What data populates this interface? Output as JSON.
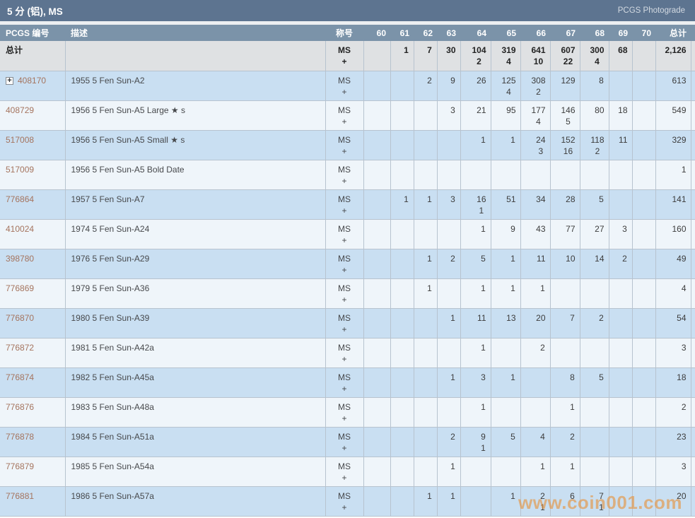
{
  "header": {
    "title": "5 分 (铝), MS",
    "right_label": "PCGS Photograde"
  },
  "table": {
    "columns": [
      "PCGS 编号",
      "描述",
      "称号",
      "60",
      "61",
      "62",
      "63",
      "64",
      "65",
      "66",
      "67",
      "68",
      "69",
      "70",
      "总计"
    ],
    "designation": {
      "line1": "MS",
      "line2": "+"
    },
    "totals_row": {
      "label": "总计",
      "grades": [
        [
          "",
          ""
        ],
        [
          "1",
          ""
        ],
        [
          "7",
          ""
        ],
        [
          "30",
          ""
        ],
        [
          "104",
          "2"
        ],
        [
          "319",
          "4"
        ],
        [
          "641",
          "10"
        ],
        [
          "607",
          "22"
        ],
        [
          "300",
          "4"
        ],
        [
          "68",
          ""
        ],
        [
          "",
          ""
        ]
      ],
      "total": "2,126"
    },
    "rows": [
      {
        "pcgs_no": "408170",
        "expandable": true,
        "description": "1955 5 Fen Sun-A2",
        "grades": [
          [
            "",
            ""
          ],
          [
            "",
            ""
          ],
          [
            "2",
            ""
          ],
          [
            "9",
            ""
          ],
          [
            "26",
            ""
          ],
          [
            "125",
            "4"
          ],
          [
            "308",
            "2"
          ],
          [
            "129",
            ""
          ],
          [
            "8",
            ""
          ],
          [
            "",
            ""
          ],
          [
            "",
            ""
          ]
        ],
        "total": "613"
      },
      {
        "pcgs_no": "408729",
        "expandable": false,
        "description": "1956 5 Fen Sun-A5 Large ★ s",
        "grades": [
          [
            "",
            ""
          ],
          [
            "",
            ""
          ],
          [
            "",
            ""
          ],
          [
            "3",
            ""
          ],
          [
            "21",
            ""
          ],
          [
            "95",
            ""
          ],
          [
            "177",
            "4"
          ],
          [
            "146",
            "5"
          ],
          [
            "80",
            ""
          ],
          [
            "18",
            ""
          ],
          [
            "",
            ""
          ]
        ],
        "total": "549"
      },
      {
        "pcgs_no": "517008",
        "expandable": false,
        "description": "1956 5 Fen Sun-A5 Small ★ s",
        "grades": [
          [
            "",
            ""
          ],
          [
            "",
            ""
          ],
          [
            "",
            ""
          ],
          [
            "",
            ""
          ],
          [
            "1",
            ""
          ],
          [
            "1",
            ""
          ],
          [
            "24",
            "3"
          ],
          [
            "152",
            "16"
          ],
          [
            "118",
            "2"
          ],
          [
            "11",
            ""
          ],
          [
            "",
            ""
          ]
        ],
        "total": "329"
      },
      {
        "pcgs_no": "517009",
        "expandable": false,
        "description": "1956 5 Fen Sun-A5 Bold Date",
        "grades": [
          [
            "",
            ""
          ],
          [
            "",
            ""
          ],
          [
            "",
            ""
          ],
          [
            "",
            ""
          ],
          [
            "",
            ""
          ],
          [
            "",
            ""
          ],
          [
            "",
            ""
          ],
          [
            "",
            ""
          ],
          [
            "",
            ""
          ],
          [
            "",
            ""
          ],
          [
            "",
            ""
          ]
        ],
        "total": "1"
      },
      {
        "pcgs_no": "776864",
        "expandable": false,
        "description": "1957 5 Fen Sun-A7",
        "grades": [
          [
            "",
            ""
          ],
          [
            "1",
            ""
          ],
          [
            "1",
            ""
          ],
          [
            "3",
            ""
          ],
          [
            "16",
            "1"
          ],
          [
            "51",
            ""
          ],
          [
            "34",
            ""
          ],
          [
            "28",
            ""
          ],
          [
            "5",
            ""
          ],
          [
            "",
            ""
          ],
          [
            "",
            ""
          ]
        ],
        "total": "141"
      },
      {
        "pcgs_no": "410024",
        "expandable": false,
        "description": "1974 5 Fen Sun-A24",
        "grades": [
          [
            "",
            ""
          ],
          [
            "",
            ""
          ],
          [
            "",
            ""
          ],
          [
            "",
            ""
          ],
          [
            "1",
            ""
          ],
          [
            "9",
            ""
          ],
          [
            "43",
            ""
          ],
          [
            "77",
            ""
          ],
          [
            "27",
            ""
          ],
          [
            "3",
            ""
          ],
          [
            "",
            ""
          ]
        ],
        "total": "160"
      },
      {
        "pcgs_no": "398780",
        "expandable": false,
        "description": "1976 5 Fen Sun-A29",
        "grades": [
          [
            "",
            ""
          ],
          [
            "",
            ""
          ],
          [
            "1",
            ""
          ],
          [
            "2",
            ""
          ],
          [
            "5",
            ""
          ],
          [
            "1",
            ""
          ],
          [
            "11",
            ""
          ],
          [
            "10",
            ""
          ],
          [
            "14",
            ""
          ],
          [
            "2",
            ""
          ],
          [
            "",
            ""
          ]
        ],
        "total": "49"
      },
      {
        "pcgs_no": "776869",
        "expandable": false,
        "description": "1979 5 Fen Sun-A36",
        "grades": [
          [
            "",
            ""
          ],
          [
            "",
            ""
          ],
          [
            "1",
            ""
          ],
          [
            "",
            ""
          ],
          [
            "1",
            ""
          ],
          [
            "1",
            ""
          ],
          [
            "1",
            ""
          ],
          [
            "",
            ""
          ],
          [
            "",
            ""
          ],
          [
            "",
            ""
          ],
          [
            "",
            ""
          ]
        ],
        "total": "4"
      },
      {
        "pcgs_no": "776870",
        "expandable": false,
        "description": "1980 5 Fen Sun-A39",
        "grades": [
          [
            "",
            ""
          ],
          [
            "",
            ""
          ],
          [
            "",
            ""
          ],
          [
            "1",
            ""
          ],
          [
            "11",
            ""
          ],
          [
            "13",
            ""
          ],
          [
            "20",
            ""
          ],
          [
            "7",
            ""
          ],
          [
            "2",
            ""
          ],
          [
            "",
            ""
          ],
          [
            "",
            ""
          ]
        ],
        "total": "54"
      },
      {
        "pcgs_no": "776872",
        "expandable": false,
        "description": "1981 5 Fen Sun-A42a",
        "grades": [
          [
            "",
            ""
          ],
          [
            "",
            ""
          ],
          [
            "",
            ""
          ],
          [
            "",
            ""
          ],
          [
            "1",
            ""
          ],
          [
            "",
            ""
          ],
          [
            "2",
            ""
          ],
          [
            "",
            ""
          ],
          [
            "",
            ""
          ],
          [
            "",
            ""
          ],
          [
            "",
            ""
          ]
        ],
        "total": "3"
      },
      {
        "pcgs_no": "776874",
        "expandable": false,
        "description": "1982 5 Fen Sun-A45a",
        "grades": [
          [
            "",
            ""
          ],
          [
            "",
            ""
          ],
          [
            "",
            ""
          ],
          [
            "1",
            ""
          ],
          [
            "3",
            ""
          ],
          [
            "1",
            ""
          ],
          [
            "",
            ""
          ],
          [
            "8",
            ""
          ],
          [
            "5",
            ""
          ],
          [
            "",
            ""
          ],
          [
            "",
            ""
          ]
        ],
        "total": "18"
      },
      {
        "pcgs_no": "776876",
        "expandable": false,
        "description": "1983 5 Fen Sun-A48a",
        "grades": [
          [
            "",
            ""
          ],
          [
            "",
            ""
          ],
          [
            "",
            ""
          ],
          [
            "",
            ""
          ],
          [
            "1",
            ""
          ],
          [
            "",
            ""
          ],
          [
            "",
            ""
          ],
          [
            "1",
            ""
          ],
          [
            "",
            ""
          ],
          [
            "",
            ""
          ],
          [
            "",
            ""
          ]
        ],
        "total": "2"
      },
      {
        "pcgs_no": "776878",
        "expandable": false,
        "description": "1984 5 Fen Sun-A51a",
        "grades": [
          [
            "",
            ""
          ],
          [
            "",
            ""
          ],
          [
            "",
            ""
          ],
          [
            "2",
            ""
          ],
          [
            "9",
            "1"
          ],
          [
            "5",
            ""
          ],
          [
            "4",
            ""
          ],
          [
            "2",
            ""
          ],
          [
            "",
            ""
          ],
          [
            "",
            ""
          ],
          [
            "",
            ""
          ]
        ],
        "total": "23"
      },
      {
        "pcgs_no": "776879",
        "expandable": false,
        "description": "1985 5 Fen Sun-A54a",
        "grades": [
          [
            "",
            ""
          ],
          [
            "",
            ""
          ],
          [
            "",
            ""
          ],
          [
            "1",
            ""
          ],
          [
            "",
            ""
          ],
          [
            "",
            ""
          ],
          [
            "1",
            ""
          ],
          [
            "1",
            ""
          ],
          [
            "",
            ""
          ],
          [
            "",
            ""
          ],
          [
            "",
            ""
          ]
        ],
        "total": "3"
      },
      {
        "pcgs_no": "776881",
        "expandable": false,
        "description": "1986 5 Fen Sun-A57a",
        "grades": [
          [
            "",
            ""
          ],
          [
            "",
            ""
          ],
          [
            "1",
            ""
          ],
          [
            "1",
            ""
          ],
          [
            "",
            ""
          ],
          [
            "1",
            ""
          ],
          [
            "2",
            "1"
          ],
          [
            "6",
            ""
          ],
          [
            "7",
            "1"
          ],
          [
            "",
            ""
          ],
          [
            "",
            ""
          ]
        ],
        "total": "20"
      }
    ]
  },
  "watermark": "www.coin001.com"
}
